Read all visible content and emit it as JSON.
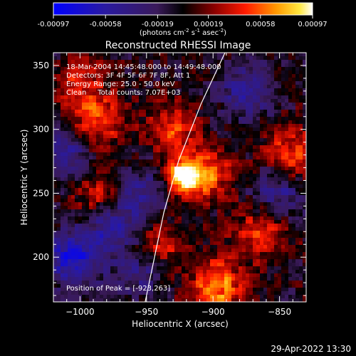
{
  "colorbar": {
    "min": -0.00097,
    "max": 0.00097,
    "tick_labels": [
      "-0.00097",
      "-0.00058",
      "-0.00019",
      "0.00019",
      "0.00058",
      "0.00097"
    ],
    "unit_label": "(photons cm",
    "unit_exp1": "-2",
    "unit_mid": " s",
    "unit_exp2": "-1",
    "unit_end": " asec",
    "unit_exp3": "-2",
    "unit_close": ")"
  },
  "chart_data": {
    "type": "heatmap",
    "title": "Reconstructed RHESSI Image",
    "xlabel": "Heliocentric X (arcsec)",
    "ylabel": "Heliocentric Y (arcsec)",
    "xlim": [
      -1020,
      -830
    ],
    "ylim": [
      165,
      360
    ],
    "x_ticks": [
      -1000,
      -950,
      -900,
      -850
    ],
    "y_ticks": [
      200,
      250,
      300,
      350
    ],
    "x_tick_labels": [
      "−1000",
      "−950",
      "−900",
      "−850"
    ],
    "y_tick_labels": [
      "200",
      "250",
      "300",
      "350"
    ],
    "peak": {
      "x": -923,
      "y": 263
    },
    "hot_spots": [
      {
        "x": -923,
        "y": 263,
        "intensity": 1.0
      },
      {
        "x": -905,
        "y": 265,
        "intensity": 0.6
      },
      {
        "x": -985,
        "y": 305,
        "intensity": 0.55
      },
      {
        "x": -930,
        "y": 300,
        "intensity": 0.5
      },
      {
        "x": -840,
        "y": 280,
        "intensity": 0.55
      },
      {
        "x": -865,
        "y": 220,
        "intensity": 0.5
      },
      {
        "x": -940,
        "y": 210,
        "intensity": 0.45
      },
      {
        "x": -985,
        "y": 250,
        "intensity": 0.45
      },
      {
        "x": -1000,
        "y": 335,
        "intensity": 0.45
      },
      {
        "x": -895,
        "y": 185,
        "intensity": 0.4
      },
      {
        "x": -900,
        "y": 170,
        "intensity": 0.45
      }
    ],
    "cold_spots": [
      {
        "x": -1005,
        "y": 200,
        "intensity": -0.75
      },
      {
        "x": -975,
        "y": 225,
        "intensity": -0.55
      },
      {
        "x": -1010,
        "y": 280,
        "intensity": -0.5
      },
      {
        "x": -955,
        "y": 250,
        "intensity": -0.45
      },
      {
        "x": -875,
        "y": 330,
        "intensity": -0.5
      },
      {
        "x": -850,
        "y": 250,
        "intensity": -0.45
      },
      {
        "x": -955,
        "y": 190,
        "intensity": -0.4
      }
    ],
    "limb": [
      [
        -951,
        165
      ],
      [
        -944,
        200
      ],
      [
        -937,
        235
      ],
      [
        -926,
        275
      ],
      [
        -909,
        320
      ],
      [
        -891,
        360
      ]
    ],
    "annotations": [
      "18-Mar-2004 14:45:48.000 to 14:49:48.000",
      "Detectors: 3F 4F 5F 6F 7F 8F, Att 1",
      "Energy Range: 25.0 - 50.0 keV",
      "Clean     Total counts: 7.07E+03"
    ],
    "peak_label": "Position of Peak = [-923,263]"
  },
  "timestamp": "29-Apr-2022 13:30",
  "colors": {
    "background": "#000000",
    "text": "#ffffff"
  }
}
